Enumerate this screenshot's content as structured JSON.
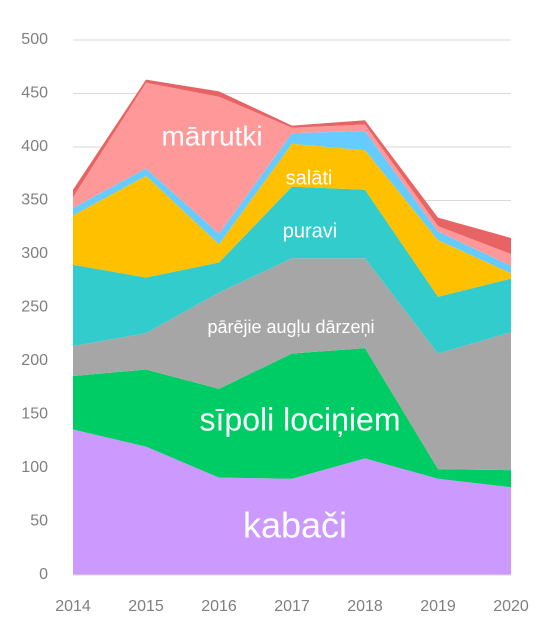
{
  "chart_data": {
    "type": "stacked_area",
    "x": [
      2014,
      2015,
      2016,
      2017,
      2018,
      2019,
      2020
    ],
    "xlim": [
      2014,
      2020
    ],
    "xticks": [
      2014,
      2015,
      2016,
      2017,
      2018,
      2019,
      2020
    ],
    "ylim": [
      0,
      500
    ],
    "yticks": [
      0,
      50,
      100,
      150,
      200,
      250,
      300,
      350,
      400,
      450,
      500
    ],
    "grid": true,
    "series": [
      {
        "name": "kabači",
        "color": "#cc99ff",
        "values": [
          136,
          120,
          91,
          90,
          109,
          90,
          82
        ]
      },
      {
        "name": "sīpoli lociņiem",
        "color": "#00cc66",
        "values": [
          50,
          72,
          83,
          117,
          103,
          9,
          16
        ]
      },
      {
        "name": "pārējie augļu dārzeņi",
        "color": "#a6a6a6",
        "values": [
          28,
          34,
          90,
          89,
          84,
          108,
          129
        ]
      },
      {
        "name": "puravi",
        "color": "#33cccc",
        "values": [
          76,
          52,
          28,
          67,
          64,
          53,
          50
        ]
      },
      {
        "name": "salāti",
        "color": "#ffc000",
        "values": [
          46,
          95,
          17,
          40,
          37,
          53,
          5
        ]
      },
      {
        "color": "#66ccff",
        "values": [
          7,
          7,
          10,
          10,
          18,
          8,
          7
        ]
      },
      {
        "name": "mārrutki",
        "color": "#ff9999",
        "values": [
          10,
          80,
          128,
          5,
          6,
          5,
          11
        ]
      },
      {
        "color": "#e86464",
        "values": [
          7,
          3,
          5,
          2,
          4,
          8,
          15
        ]
      }
    ]
  }
}
